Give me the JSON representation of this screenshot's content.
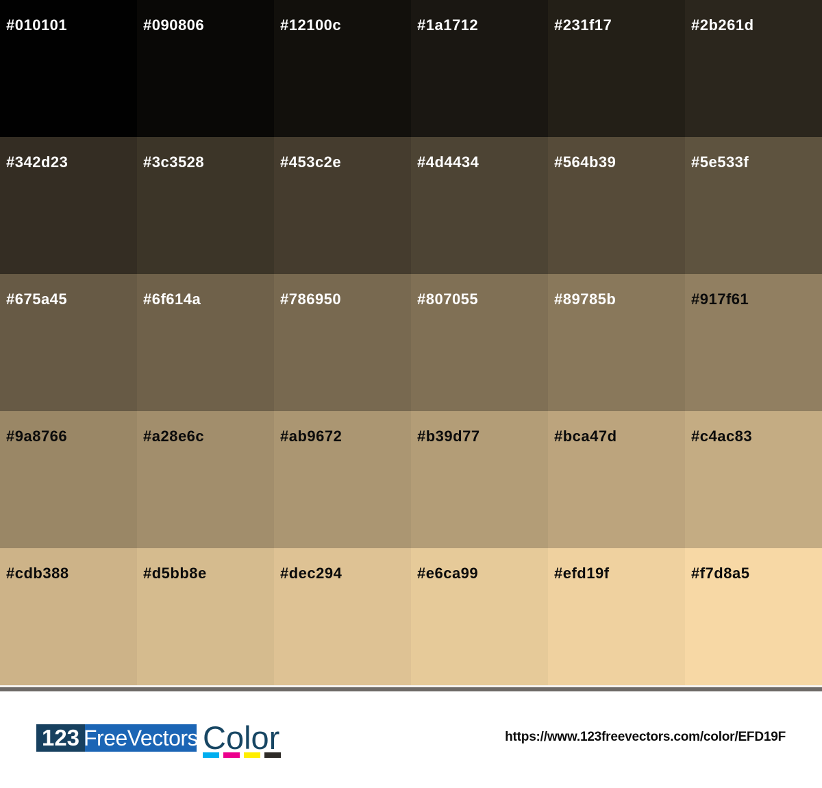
{
  "palette": {
    "rows": 5,
    "cols": 6,
    "cells": [
      {
        "hex": "#010101",
        "text_color": "#ffffff"
      },
      {
        "hex": "#090806",
        "text_color": "#ffffff"
      },
      {
        "hex": "#12100c",
        "text_color": "#ffffff"
      },
      {
        "hex": "#1a1712",
        "text_color": "#ffffff"
      },
      {
        "hex": "#231f17",
        "text_color": "#ffffff"
      },
      {
        "hex": "#2b261d",
        "text_color": "#ffffff"
      },
      {
        "hex": "#342d23",
        "text_color": "#ffffff"
      },
      {
        "hex": "#3c3528",
        "text_color": "#ffffff"
      },
      {
        "hex": "#453c2e",
        "text_color": "#ffffff"
      },
      {
        "hex": "#4d4434",
        "text_color": "#ffffff"
      },
      {
        "hex": "#564b39",
        "text_color": "#ffffff"
      },
      {
        "hex": "#5e533f",
        "text_color": "#ffffff"
      },
      {
        "hex": "#675a45",
        "text_color": "#ffffff"
      },
      {
        "hex": "#6f614a",
        "text_color": "#ffffff"
      },
      {
        "hex": "#786950",
        "text_color": "#ffffff"
      },
      {
        "hex": "#807055",
        "text_color": "#ffffff"
      },
      {
        "hex": "#89785b",
        "text_color": "#ffffff"
      },
      {
        "hex": "#917f61",
        "text_color": "#0b0b0b"
      },
      {
        "hex": "#9a8766",
        "text_color": "#0b0b0b"
      },
      {
        "hex": "#a28e6c",
        "text_color": "#0b0b0b"
      },
      {
        "hex": "#ab9672",
        "text_color": "#0b0b0b"
      },
      {
        "hex": "#b39d77",
        "text_color": "#0b0b0b"
      },
      {
        "hex": "#bca47d",
        "text_color": "#0b0b0b"
      },
      {
        "hex": "#c4ac83",
        "text_color": "#0b0b0b"
      },
      {
        "hex": "#cdb388",
        "text_color": "#0b0b0b"
      },
      {
        "hex": "#d5bb8e",
        "text_color": "#0b0b0b"
      },
      {
        "hex": "#dec294",
        "text_color": "#0b0b0b"
      },
      {
        "hex": "#e6ca99",
        "text_color": "#0b0b0b"
      },
      {
        "hex": "#efd19f",
        "text_color": "#0b0b0b"
      },
      {
        "hex": "#f7d8a5",
        "text_color": "#0b0b0b"
      }
    ]
  },
  "divider": {
    "light_color": "#f5f2ee",
    "dark_color": "#6e6a67"
  },
  "footer": {
    "logo": {
      "part1": "123",
      "part1_bg": "#17405f",
      "part2": "FreeVectors",
      "part2_bg": "#1b65b5",
      "part3": "Color",
      "part3_color": "#174663",
      "cmyk_bars": [
        "#00aeef",
        "#ec008c",
        "#ffee00",
        "#2e2b27"
      ]
    },
    "url": "https://www.123freevectors.com/color/EFD19F"
  }
}
